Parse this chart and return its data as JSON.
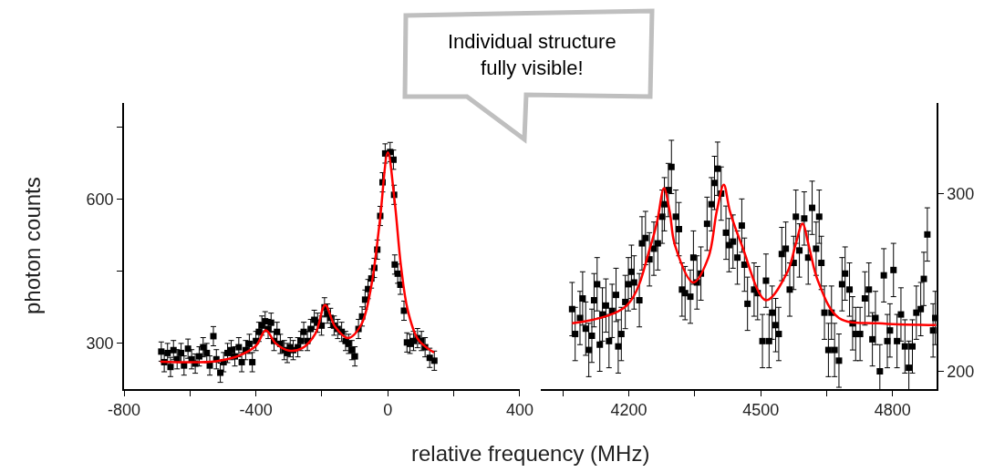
{
  "chart_data": [
    {
      "type": "scatter",
      "xlabel": "relative frequency (MHz)",
      "ylabel": "photon counts",
      "annotations": [
        "Individual structure\nfully visible!"
      ],
      "xlim": [
        -800,
        400
      ],
      "xticks": [
        -800,
        {
          "value": -600,
          "label": null
        },
        -400,
        {
          "value": -200,
          "label": null
        },
        0,
        {
          "value": 200,
          "label": null
        },
        400
      ],
      "ylim": [
        205,
        800
      ],
      "yticks": [
        300,
        {
          "value": 450,
          "label": null
        },
        600,
        {
          "value": 750,
          "label": null
        }
      ],
      "series": [
        {
          "marker": "square",
          "color": "#000000",
          "x": [
            -687,
            -678,
            -668,
            -659,
            -650,
            -639,
            -627,
            -618,
            -606,
            -595,
            -584,
            -572,
            -560,
            -549,
            -540,
            -529,
            -520,
            -508,
            -498,
            -486,
            -475,
            -464,
            -452,
            -443,
            -431,
            -420,
            -411,
            -400,
            -391,
            -382,
            -372,
            -363,
            -354,
            -345,
            -336,
            -326,
            -314,
            -305,
            -296,
            -287,
            -273,
            -264,
            -255,
            -244,
            -234,
            -223,
            -213,
            -201,
            -192,
            -183,
            -174,
            -163,
            -152,
            -140,
            -128,
            -119,
            -109,
            -100,
            -89,
            -78,
            -69,
            -60,
            -50,
            -41,
            -32,
            -23,
            -16,
            -8,
            7,
            17,
            19,
            21,
            30,
            38,
            49,
            58,
            67,
            78,
            90,
            102,
            113,
            127,
            141
          ],
          "values": [
            283,
            261,
            280,
            251,
            286,
            267,
            280,
            254,
            289,
            267,
            258,
            273,
            292,
            280,
            254,
            315,
            267,
            239,
            261,
            280,
            286,
            273,
            292,
            261,
            286,
            299,
            261,
            305,
            324,
            337,
            346,
            330,
            343,
            305,
            324,
            299,
            286,
            280,
            292,
            286,
            292,
            305,
            324,
            305,
            330,
            349,
            343,
            337,
            375,
            362,
            353,
            337,
            330,
            324,
            305,
            299,
            286,
            273,
            330,
            356,
            391,
            413,
            435,
            457,
            495,
            565,
            635,
            695,
            698,
            682,
            609,
            464,
            445,
            422,
            368,
            302,
            299,
            305,
            311,
            305,
            292,
            270,
            264
          ],
          "errors": [
            20,
            20,
            20,
            20,
            20,
            20,
            20,
            20,
            20,
            20,
            20,
            20,
            20,
            20,
            20,
            20,
            20,
            20,
            20,
            20,
            20,
            20,
            20,
            20,
            20,
            20,
            20,
            20,
            20,
            20,
            20,
            20,
            20,
            20,
            20,
            20,
            20,
            20,
            20,
            20,
            20,
            20,
            20,
            20,
            20,
            20,
            20,
            20,
            20,
            20,
            20,
            20,
            20,
            20,
            20,
            20,
            20,
            20,
            20,
            20,
            20,
            20,
            20,
            20,
            20,
            20,
            20,
            20,
            20,
            20,
            20,
            20,
            20,
            20,
            20,
            20,
            20,
            20,
            20,
            20,
            20,
            20,
            20
          ]
        },
        {
          "type": "line",
          "color": "#ff0000",
          "x": [
            -690,
            -520,
            -450,
            -400,
            -370,
            -340,
            -300,
            -260,
            -220,
            -190,
            -160,
            -120,
            -80,
            -50,
            -25,
            0,
            20,
            40,
            60,
            90,
            120,
            140
          ],
          "values": [
            262,
            263,
            275,
            295,
            327,
            300,
            285,
            290,
            320,
            380,
            335,
            311,
            340,
            420,
            550,
            697,
            600,
            460,
            370,
            310,
            290,
            281
          ]
        }
      ]
    },
    {
      "type": "scatter",
      "xlim": [
        4000,
        4900
      ],
      "xticks": [
        {
          "value": 4050,
          "label": null
        },
        4200,
        {
          "value": 4350,
          "label": null
        },
        4500,
        {
          "value": 4650,
          "label": null
        },
        4800
      ],
      "ylim": [
        190,
        351
      ],
      "yticks": [
        200,
        300
      ],
      "series": [
        {
          "marker": "square",
          "color": "#000000",
          "x": [
            4071,
            4078,
            4089,
            4095,
            4102,
            4109,
            4116,
            4121,
            4128,
            4134,
            4140,
            4148,
            4155,
            4162,
            4171,
            4176,
            4183,
            4192,
            4199,
            4206,
            4212,
            4224,
            4230,
            4238,
            4247,
            4257,
            4266,
            4276,
            4281,
            4290,
            4297,
            4307,
            4314,
            4321,
            4328,
            4340,
            4347,
            4355,
            4364,
            4378,
            4388,
            4395,
            4402,
            4410,
            4421,
            4428,
            4437,
            4447,
            4457,
            4463,
            4470,
            4485,
            4493,
            4504,
            4512,
            4519,
            4526,
            4534,
            4541,
            4548,
            4557,
            4566,
            4575,
            4580,
            4588,
            4599,
            4608,
            4617,
            4626,
            4633,
            4638,
            4645,
            4654,
            4661,
            4668,
            4678,
            4685,
            4692,
            4702,
            4709,
            4716,
            4726,
            4737,
            4746,
            4754,
            4761,
            4771,
            4780,
            4788,
            4794,
            4802,
            4810,
            4819,
            4828,
            4837,
            4845,
            4854,
            4864,
            4871,
            4879,
            4892,
            4897
          ],
          "values": [
            235,
            221,
            230,
            241,
            224,
            212,
            220,
            240,
            249,
            215,
            232,
            237,
            217,
            234,
            243,
            214,
            221,
            239,
            249,
            256,
            250,
            240,
            272,
            275,
            263,
            269,
            272,
            287,
            294,
            302,
            315,
            287,
            280,
            246,
            244,
            242,
            264,
            250,
            255,
            283,
            294,
            306,
            314,
            300,
            278,
            271,
            273,
            264,
            282,
            260,
            238,
            246,
            244,
            217,
            251,
            217,
            233,
            226,
            221,
            266,
            269,
            246,
            261,
            287,
            268,
            286,
            264,
            292,
            269,
            287,
            261,
            233,
            212,
            233,
            212,
            206,
            249,
            255,
            246,
            227,
            221,
            221,
            241,
            246,
            218,
            230,
            200,
            254,
            217,
            223,
            257,
            217,
            232,
            214,
            202,
            214,
            233,
            235,
            252,
            277,
            223,
            230
          ],
          "errors": [
            15,
            15,
            15,
            15,
            15,
            15,
            15,
            15,
            15,
            15,
            15,
            15,
            15,
            15,
            15,
            15,
            15,
            15,
            15,
            15,
            15,
            15,
            15,
            15,
            15,
            15,
            15,
            15,
            15,
            15,
            15,
            15,
            15,
            15,
            15,
            15,
            15,
            15,
            15,
            15,
            15,
            15,
            15,
            15,
            15,
            15,
            15,
            15,
            15,
            15,
            15,
            15,
            15,
            15,
            15,
            15,
            15,
            15,
            15,
            15,
            15,
            15,
            15,
            15,
            15,
            15,
            15,
            15,
            15,
            15,
            15,
            15,
            15,
            15,
            15,
            15,
            15,
            15,
            15,
            15,
            15,
            15,
            15,
            15,
            15,
            15,
            15,
            15,
            15,
            15,
            15,
            15,
            15,
            15,
            15,
            15,
            15,
            15,
            15,
            15,
            15,
            15
          ]
        },
        {
          "type": "line",
          "color": "#ff0000",
          "x": [
            4071,
            4195,
            4250,
            4265,
            4280,
            4293,
            4305,
            4347,
            4381,
            4400,
            4416,
            4430,
            4457,
            4512,
            4561,
            4580,
            4595,
            4610,
            4630,
            4678,
            4768,
            4899
          ],
          "values": [
            227,
            237,
            271,
            285,
            303,
            290,
            271,
            250,
            264,
            290,
            305,
            290,
            271,
            240,
            256,
            272,
            283,
            270,
            251,
            230,
            227,
            226
          ]
        }
      ]
    }
  ]
}
